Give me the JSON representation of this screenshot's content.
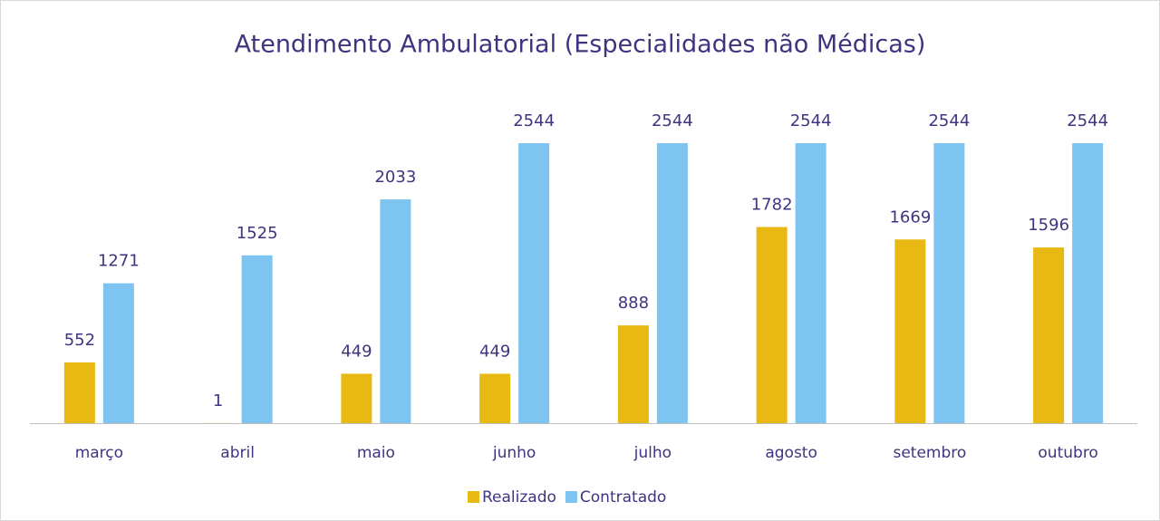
{
  "chart_data": {
    "type": "bar",
    "title": "Atendimento Ambulatorial (Especialidades não Médicas)",
    "categories": [
      "março",
      "abril",
      "maio",
      "junho",
      "julho",
      "agosto",
      "setembro",
      "outubro"
    ],
    "series": [
      {
        "name": "Realizado",
        "color": "#e8b912",
        "values": [
          552,
          1,
          449,
          449,
          888,
          1782,
          1669,
          1596
        ]
      },
      {
        "name": "Contratado",
        "color": "#7dc4f0",
        "values": [
          1271,
          1525,
          2033,
          2544,
          2544,
          2544,
          2544,
          2544
        ]
      }
    ],
    "ylim": [
      0,
      2544
    ],
    "legend": "bottom"
  }
}
